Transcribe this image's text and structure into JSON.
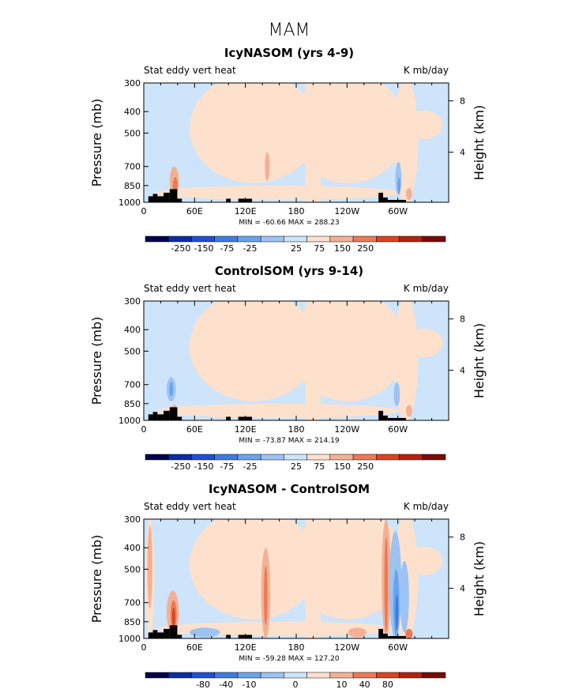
{
  "figure_title": "MAM",
  "colors": {
    "neg_light": "#cde4fa",
    "pos_light": "#fde1cd",
    "blue1": "#9cc3f2",
    "blue2": "#6aa3ea",
    "blue3": "#3d7de0",
    "red1": "#f4b095",
    "red2": "#ec7a55",
    "red3": "#d9441f",
    "topo": "#000000"
  },
  "chart_data": [
    {
      "type": "heatmap",
      "panel": "top",
      "title": "IcyNASOM (yrs 4-9)",
      "left_label": "Stat eddy vert heat",
      "right_label": "K mb/day",
      "ylabel": "Pressure (mb)",
      "ylabel_right": "Height (km)",
      "x_ticks": [
        "0",
        "60E",
        "120E",
        "180",
        "120W",
        "60W"
      ],
      "y_ticks": [
        "300",
        "400",
        "500",
        "700",
        "850",
        "1000"
      ],
      "y_ticks_right": [
        "8",
        "4"
      ],
      "stats": "MIN = -60.66   MAX = 288.23",
      "colorbar_labels": [
        "-250",
        "-150",
        "-75",
        "-25",
        "25",
        "75",
        "150",
        "250"
      ],
      "colorbar_colors": [
        "#00004c",
        "#0a2ca8",
        "#1f4fd6",
        "#3d7de0",
        "#6aa3ea",
        "#9cc3f2",
        "#cde4fa",
        "#fde1cd",
        "#f4b095",
        "#ec7a55",
        "#d9441f",
        "#b5220f",
        "#7a0a05"
      ]
    },
    {
      "type": "heatmap",
      "panel": "middle",
      "title": "ControlSOM (yrs 9-14)",
      "left_label": "Stat eddy vert heat",
      "right_label": "K mb/day",
      "ylabel": "Pressure (mb)",
      "ylabel_right": "Height (km)",
      "x_ticks": [
        "0",
        "60E",
        "120E",
        "180",
        "120W",
        "60W"
      ],
      "y_ticks": [
        "300",
        "400",
        "500",
        "700",
        "850",
        "1000"
      ],
      "y_ticks_right": [
        "8",
        "4"
      ],
      "stats": "MIN = -73.87   MAX = 214.19",
      "colorbar_labels": [
        "-250",
        "-150",
        "-75",
        "-25",
        "25",
        "75",
        "150",
        "250"
      ],
      "colorbar_colors": [
        "#00004c",
        "#0a2ca8",
        "#1f4fd6",
        "#3d7de0",
        "#6aa3ea",
        "#9cc3f2",
        "#cde4fa",
        "#fde1cd",
        "#f4b095",
        "#ec7a55",
        "#d9441f",
        "#b5220f",
        "#7a0a05"
      ]
    },
    {
      "type": "heatmap",
      "panel": "bottom",
      "title": "IcyNASOM - ControlSOM",
      "left_label": "Stat eddy vert heat",
      "right_label": "K mb/day",
      "ylabel": "Pressure (mb)",
      "ylabel_right": "Height (km)",
      "x_ticks": [
        "0",
        "60E",
        "120E",
        "180",
        "120W",
        "60W"
      ],
      "y_ticks": [
        "300",
        "400",
        "500",
        "700",
        "850",
        "1000"
      ],
      "y_ticks_right": [
        "8",
        "4"
      ],
      "stats": "MIN = -59.28   MAX = 127.20",
      "colorbar_labels": [
        "-80",
        "-40",
        "-10",
        "0",
        "10",
        "40",
        "80"
      ],
      "colorbar_colors": [
        "#00004c",
        "#0a2ca8",
        "#1f4fd6",
        "#3d7de0",
        "#6aa3ea",
        "#9cc3f2",
        "#cde4fa",
        "#fde1cd",
        "#f4b095",
        "#ec7a55",
        "#d9441f",
        "#b5220f",
        "#7a0a05"
      ]
    }
  ]
}
